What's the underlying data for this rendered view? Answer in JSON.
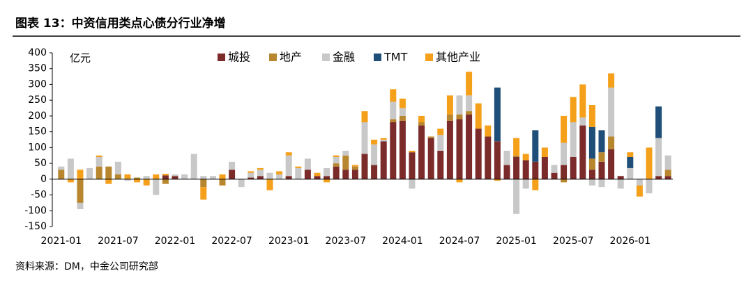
{
  "chart_data": {
    "type": "bar",
    "stacked": true,
    "title": "图表 13：中资信用类点心债分行业净增",
    "y_unit": "亿元",
    "source": "资料来源：DM，中金公司研究部",
    "categories": [
      "2021-01",
      null,
      null,
      null,
      null,
      null,
      "2021-07",
      null,
      null,
      null,
      null,
      null,
      "2022-01",
      null,
      null,
      null,
      null,
      null,
      "2022-07",
      null,
      null,
      null,
      null,
      null,
      "2023-01",
      null,
      null,
      null,
      null,
      null,
      "2023-07",
      null,
      null,
      null,
      null,
      null,
      "2024-01",
      null,
      null,
      null,
      null,
      null,
      "2024-07",
      null,
      null,
      null,
      null,
      null,
      "2025-01",
      null,
      null,
      null,
      null,
      null,
      "2025-07",
      null,
      null,
      null,
      null,
      null,
      "2026-01",
      null,
      null,
      null,
      null
    ],
    "series": [
      {
        "name": "城投",
        "color": "#7b2c2a",
        "values": [
          0,
          0,
          0,
          0,
          0,
          0,
          0,
          0,
          0,
          0,
          0,
          12,
          10,
          0,
          0,
          0,
          0,
          0,
          30,
          0,
          5,
          10,
          0,
          0,
          10,
          0,
          30,
          10,
          10,
          40,
          30,
          30,
          80,
          45,
          120,
          180,
          185,
          85,
          170,
          130,
          90,
          185,
          190,
          205,
          160,
          135,
          120,
          45,
          70,
          60,
          55,
          70,
          20,
          45,
          70,
          170,
          30,
          55,
          95,
          10,
          0,
          0,
          0,
          10,
          10
        ]
      },
      {
        "name": "地产",
        "color": "#b8862e",
        "values": [
          30,
          0,
          -75,
          0,
          40,
          40,
          15,
          0,
          5,
          0,
          0,
          -15,
          0,
          0,
          0,
          -25,
          0,
          -20,
          0,
          0,
          0,
          0,
          0,
          0,
          0,
          0,
          0,
          0,
          0,
          10,
          45,
          10,
          0,
          0,
          0,
          10,
          15,
          0,
          10,
          5,
          0,
          20,
          15,
          10,
          0,
          0,
          0,
          0,
          5,
          0,
          0,
          0,
          0,
          -10,
          0,
          0,
          35,
          30,
          40,
          0,
          0,
          0,
          0,
          0,
          20
        ]
      },
      {
        "name": "金融",
        "color": "#c8c8c8",
        "values": [
          10,
          65,
          -20,
          35,
          30,
          0,
          40,
          -5,
          0,
          10,
          -50,
          0,
          5,
          15,
          80,
          10,
          10,
          0,
          25,
          -25,
          15,
          20,
          20,
          15,
          65,
          35,
          35,
          0,
          25,
          20,
          15,
          0,
          100,
          65,
          5,
          55,
          25,
          -30,
          0,
          0,
          50,
          0,
          60,
          50,
          0,
          0,
          0,
          45,
          -110,
          -30,
          0,
          0,
          25,
          70,
          110,
          25,
          -20,
          -25,
          155,
          -30,
          35,
          -20,
          -45,
          120,
          45
        ]
      },
      {
        "name": "TMT",
        "color": "#1f4e79",
        "values": [
          0,
          0,
          0,
          0,
          0,
          0,
          0,
          0,
          0,
          0,
          0,
          0,
          0,
          0,
          0,
          0,
          0,
          0,
          0,
          0,
          0,
          0,
          0,
          0,
          0,
          0,
          0,
          0,
          0,
          0,
          0,
          0,
          0,
          0,
          0,
          0,
          0,
          0,
          0,
          0,
          0,
          0,
          0,
          0,
          0,
          0,
          170,
          0,
          0,
          0,
          100,
          0,
          0,
          0,
          0,
          0,
          100,
          70,
          0,
          0,
          35,
          0,
          0,
          100,
          0
        ]
      },
      {
        "name": "其他产业",
        "color": "#f5a01a",
        "values": [
          0,
          -10,
          30,
          0,
          5,
          -15,
          0,
          15,
          -10,
          -20,
          15,
          5,
          0,
          0,
          0,
          -40,
          0,
          15,
          0,
          0,
          5,
          5,
          -35,
          10,
          10,
          5,
          0,
          10,
          -10,
          5,
          0,
          5,
          35,
          15,
          5,
          40,
          30,
          5,
          20,
          0,
          20,
          60,
          -10,
          75,
          80,
          35,
          -5,
          0,
          55,
          20,
          -35,
          30,
          0,
          85,
          80,
          105,
          70,
          0,
          45,
          0,
          15,
          -35,
          100,
          0,
          0
        ]
      }
    ],
    "ylim": [
      -150,
      400
    ],
    "yticks": [
      -150,
      -100,
      -50,
      0,
      50,
      100,
      150,
      200,
      250,
      300,
      350,
      400
    ]
  }
}
